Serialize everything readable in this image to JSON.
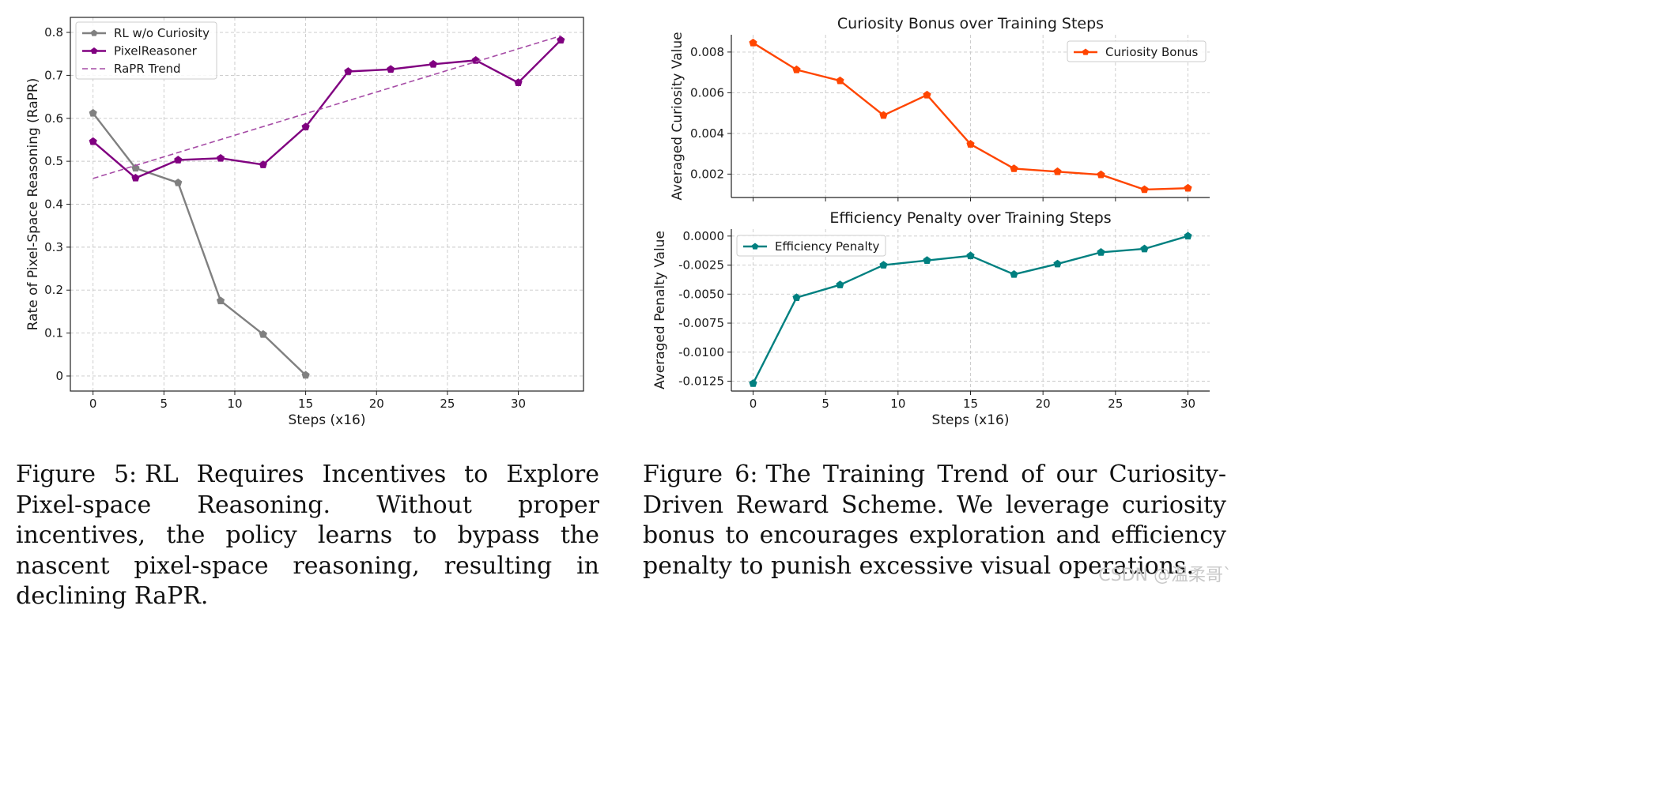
{
  "chart_data": [
    {
      "type": "line",
      "title": "",
      "xlabel": "Steps (x16)",
      "ylabel": "Rate of Pixel-Space Reasoning (RaPR)",
      "xlim": [
        -1.6,
        34.6
      ],
      "ylim": [
        -0.035,
        0.835
      ],
      "xticks": [
        0,
        5,
        10,
        15,
        20,
        25,
        30
      ],
      "yticks": [
        0.0,
        0.1,
        0.2,
        0.3,
        0.4,
        0.5,
        0.6,
        0.7,
        0.8
      ],
      "grid": true,
      "legend": "top-left",
      "series": [
        {
          "name": "RL w/o Curiosity",
          "color": "#808080",
          "style": "solid",
          "marker": "pentagon",
          "x": [
            0,
            3,
            6,
            9,
            12,
            15
          ],
          "y": [
            0.612,
            0.484,
            0.45,
            0.175,
            0.097,
            0.002
          ]
        },
        {
          "name": "PixelReasoner",
          "color": "#800080",
          "style": "solid",
          "marker": "pentagon",
          "x": [
            0,
            3,
            6,
            9,
            12,
            15,
            18,
            21,
            24,
            27,
            30,
            33
          ],
          "y": [
            0.546,
            0.461,
            0.503,
            0.507,
            0.492,
            0.58,
            0.709,
            0.714,
            0.726,
            0.735,
            0.683,
            0.782
          ]
        },
        {
          "name": "RaPR Trend",
          "color": "#a64ca6",
          "style": "dashed",
          "marker": "none",
          "x": [
            0,
            33
          ],
          "y": [
            0.46,
            0.792
          ]
        }
      ]
    },
    {
      "type": "line",
      "title": "Curiosity Bonus over Training Steps",
      "xlabel": "",
      "ylabel": "Averaged Curiosity Value",
      "xlim": [
        -1.5,
        31.5
      ],
      "ylim": [
        0.00085,
        0.00885
      ],
      "xticks": [
        0,
        5,
        10,
        15,
        20,
        25,
        30
      ],
      "show_xticklabels": false,
      "yticks": [
        0.002,
        0.004,
        0.006,
        0.008
      ],
      "ytick_labels": [
        "0.002",
        "0.004",
        "0.006",
        "0.008"
      ],
      "grid": true,
      "legend": "top-right",
      "series": [
        {
          "name": "Curiosity Bonus",
          "color": "#ff4500",
          "style": "solid",
          "marker": "pentagon",
          "x": [
            0,
            3,
            6,
            9,
            12,
            15,
            18,
            21,
            24,
            27,
            30
          ],
          "y": [
            0.00845,
            0.00713,
            0.00659,
            0.00489,
            0.00589,
            0.00347,
            0.00227,
            0.00212,
            0.00197,
            0.00124,
            0.00131
          ]
        }
      ]
    },
    {
      "type": "line",
      "title": "Efficiency Penalty over Training Steps",
      "xlabel": "Steps (x16)",
      "ylabel": "Averaged Penalty Value",
      "xlim": [
        -1.5,
        31.5
      ],
      "ylim": [
        -0.01335,
        0.0006
      ],
      "xticks": [
        0,
        5,
        10,
        15,
        20,
        25,
        30
      ],
      "yticks": [
        0.0,
        -0.0025,
        -0.005,
        -0.0075,
        -0.01,
        -0.0125
      ],
      "ytick_labels": [
        "0.0000",
        "-0.0025",
        "-0.0050",
        "-0.0075",
        "-0.0100",
        "-0.0125"
      ],
      "grid": true,
      "legend": "top-left",
      "series": [
        {
          "name": "Efficiency Penalty",
          "color": "#008080",
          "style": "solid",
          "marker": "pentagon",
          "x": [
            0,
            3,
            6,
            9,
            12,
            15,
            18,
            21,
            24,
            27,
            30
          ],
          "y": [
            -0.0127,
            -0.0053,
            -0.0042,
            -0.0025,
            -0.0021,
            -0.0017,
            -0.0033,
            -0.0024,
            -0.0014,
            -0.0011,
            0.0
          ]
        }
      ]
    }
  ],
  "captions": {
    "fig5_label": "Figure 5:",
    "fig5_text": "RL Requires Incentives to Explore Pixel-space Reasoning. Without proper incentives, the policy learns to bypass the nascent pixel-space reasoning, resulting in declining RaPR.",
    "fig6_label": "Figure 6:",
    "fig6_text": "The Training Trend of our Curiosity-Driven Reward Scheme. We leverage curiosity bonus to encourages exploration and efficiency penalty to punish excessive visual operations."
  },
  "watermark": "CSDN @温柔哥`"
}
